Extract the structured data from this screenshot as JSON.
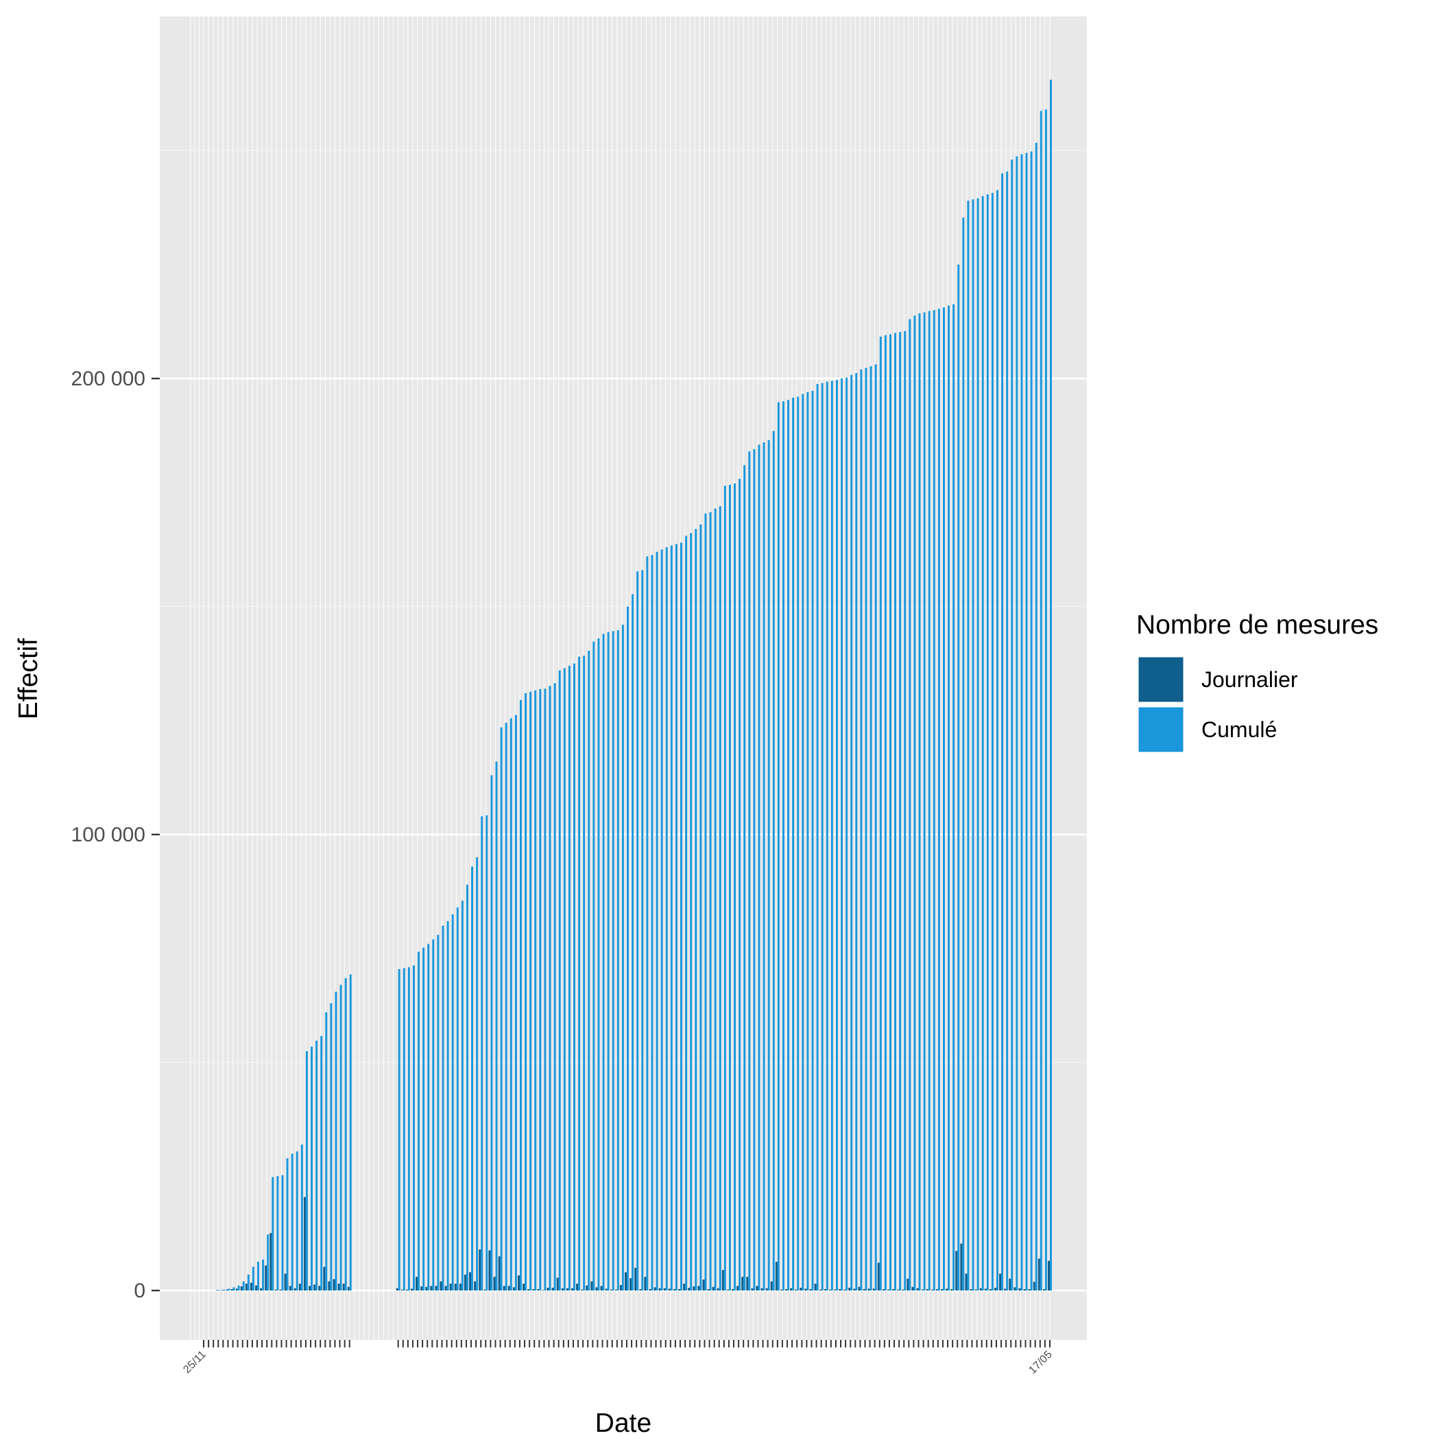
{
  "chart_data": {
    "type": "bar",
    "xlabel": "Date",
    "ylabel": "Effectif",
    "ylim": [
      -14000,
      278000
    ],
    "y_ticks": [
      0,
      100000,
      200000
    ],
    "y_tick_labels": [
      "0",
      "100 000",
      "200 000"
    ],
    "grid": true,
    "legend": {
      "title": "Nombre de mesures",
      "placement": "right",
      "entries": [
        "Journalier",
        "Cumulé"
      ]
    },
    "colors": {
      "journalier": "#0f5e8c",
      "cumule": "#1a96db",
      "panel": "#e8e8e8",
      "grid_major": "#ffffff",
      "grid_minor": "#f2f2f2"
    },
    "x_first_label": "25/11",
    "x_last_label": "17/05",
    "series": [
      {
        "name": "Cumulé",
        "values": [
          0,
          0,
          0,
          100,
          200,
          400,
          700,
          1100,
          2000,
          3500,
          5200,
          6300,
          6800,
          12300,
          24900,
          25100,
          25300,
          29000,
          30000,
          30500,
          32000,
          52500,
          53500,
          54800,
          55800,
          61000,
          63000,
          65500,
          67000,
          68500,
          69300,
          null,
          null,
          null,
          null,
          null,
          null,
          null,
          null,
          null,
          70500,
          70700,
          70900,
          71300,
          74300,
          75200,
          76000,
          77000,
          78000,
          80000,
          81000,
          82500,
          84000,
          85500,
          89000,
          93000,
          95000,
          104000,
          104200,
          113000,
          116000,
          123500,
          124500,
          125500,
          126200,
          129500,
          131000,
          131300,
          131600,
          131900,
          132000,
          132600,
          133200,
          136000,
          136500,
          137000,
          137500,
          139000,
          139200,
          140300,
          142300,
          143000,
          144000,
          144400,
          144600,
          144800,
          146000,
          150000,
          152700,
          157700,
          158000,
          161000,
          161300,
          162000,
          162500,
          163000,
          163400,
          163700,
          164000,
          165500,
          166100,
          167000,
          168000,
          170400,
          170700,
          171500,
          172000,
          176500,
          176700,
          177000,
          178000,
          181000,
          184000,
          184500,
          185500,
          186000,
          186500,
          188500,
          194800,
          195000,
          195300,
          195800,
          196000,
          196600,
          197000,
          197300,
          198800,
          199000,
          199300,
          199500,
          199700,
          200000,
          200200,
          200800,
          201200,
          202000,
          202300,
          202700,
          203100,
          209200,
          209500,
          209700,
          210000,
          210200,
          210400,
          213000,
          213800,
          214300,
          214500,
          214800,
          215000,
          215300,
          215600,
          216000,
          216300,
          225000,
          235300,
          239000,
          239300,
          239500,
          240000,
          240400,
          240700,
          241300,
          245000,
          245400,
          248000,
          248700,
          249200,
          249500,
          249800,
          251700,
          258700,
          259000,
          265500
        ]
      },
      {
        "name": "Journalier",
        "values": [
          0,
          0,
          0,
          100,
          100,
          200,
          300,
          400,
          900,
          1500,
          1700,
          1100,
          500,
          5500,
          12600,
          200,
          200,
          3700,
          1000,
          500,
          1500,
          20500,
          1000,
          1300,
          1000,
          5200,
          2000,
          2500,
          1500,
          1500,
          800,
          null,
          null,
          null,
          null,
          null,
          null,
          null,
          null,
          null,
          500,
          200,
          200,
          400,
          3000,
          900,
          800,
          1000,
          1000,
          2000,
          1000,
          1500,
          1500,
          1500,
          3500,
          4000,
          2000,
          9000,
          200,
          8800,
          3000,
          7500,
          1000,
          1000,
          700,
          3300,
          1500,
          300,
          300,
          300,
          100,
          600,
          600,
          2800,
          500,
          500,
          500,
          1500,
          200,
          1100,
          2000,
          700,
          1000,
          400,
          200,
          200,
          1200,
          4000,
          2700,
          5000,
          300,
          3000,
          300,
          700,
          500,
          500,
          400,
          300,
          300,
          1500,
          600,
          900,
          1000,
          2400,
          300,
          800,
          500,
          4500,
          200,
          300,
          1000,
          3000,
          3000,
          500,
          1000,
          500,
          500,
          2000,
          6300,
          200,
          300,
          500,
          200,
          600,
          400,
          300,
          1500,
          200,
          300,
          200,
          200,
          300,
          200,
          600,
          400,
          800,
          300,
          400,
          400,
          6100,
          300,
          200,
          300,
          200,
          200,
          2600,
          800,
          500,
          200,
          300,
          200,
          300,
          300,
          400,
          300,
          8700,
          10300,
          3700,
          300,
          200,
          500,
          400,
          300,
          600,
          3700,
          400,
          2600,
          700,
          500,
          300,
          300,
          1900,
          7000,
          300,
          6500
        ]
      }
    ]
  }
}
